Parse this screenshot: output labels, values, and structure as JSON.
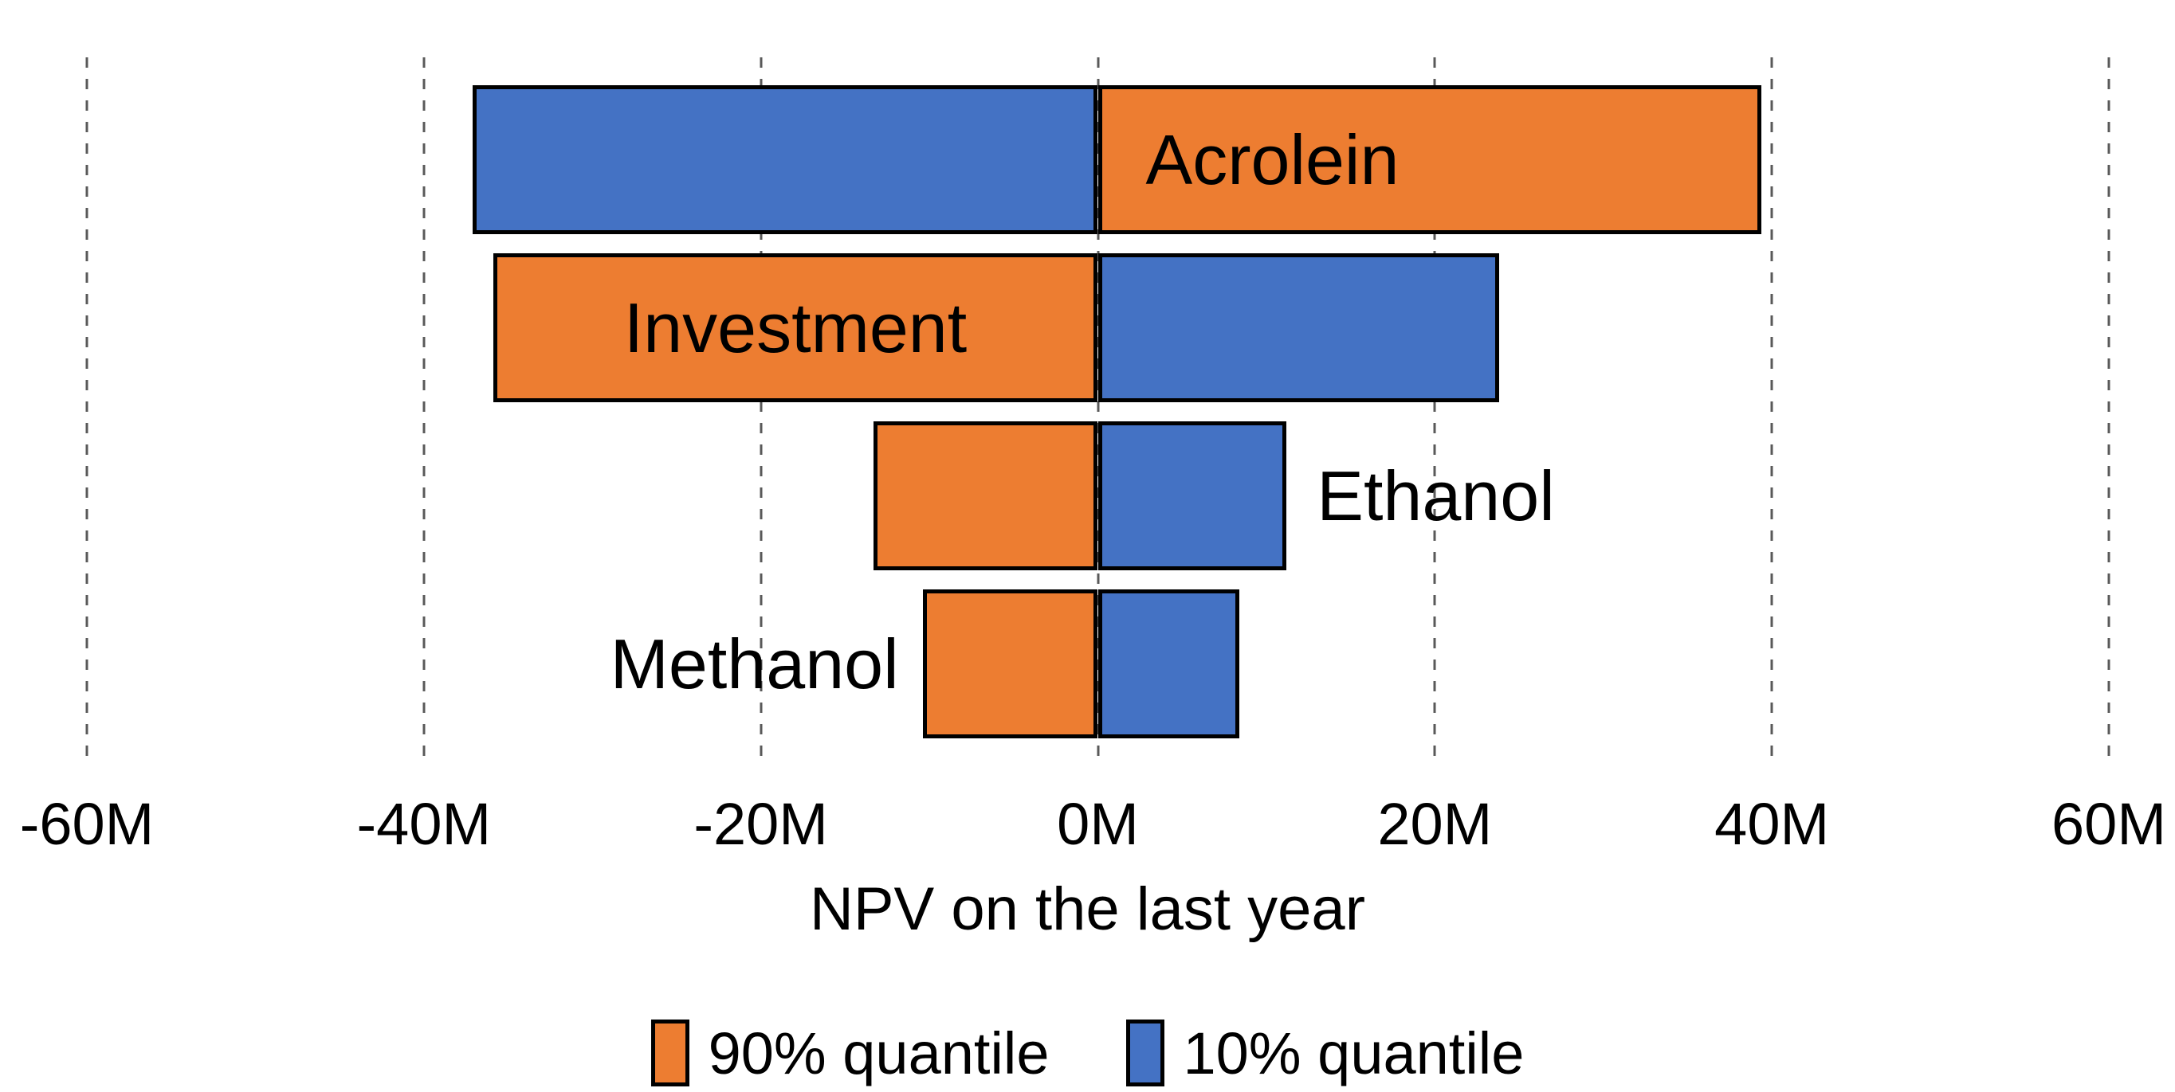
{
  "chart_data": {
    "type": "bar",
    "subtype": "horizontal-diverging-tornado",
    "title": "",
    "xlabel": "NPV on the last year",
    "xlim": [
      -60,
      60
    ],
    "xticks": {
      "values": [
        -60,
        -40,
        -20,
        0,
        20,
        40,
        60
      ],
      "labels": [
        "-60M",
        "-40M",
        "-20M",
        "0M",
        "20M",
        "40M",
        "60M"
      ]
    },
    "grid": {
      "vertical_dashed": true,
      "color": "#595959"
    },
    "background_color": "#FFFFFF",
    "bar_border_color": "#000000",
    "text_color": "#000000",
    "categories": [
      "Acrolein",
      "Investment",
      "Ethanol",
      "Methanol"
    ],
    "category_label_placement": [
      "inside-positive",
      "inside-negative",
      "outside-positive",
      "outside-negative"
    ],
    "series": [
      {
        "name": "90% quantile",
        "color": "#ED7D31",
        "values": [
          39.4,
          -35.9,
          -13.3,
          -10.4
        ]
      },
      {
        "name": "10% quantile",
        "color": "#4472C4",
        "values": [
          -37.1,
          23.8,
          11.2,
          8.4
        ]
      }
    ],
    "legend": {
      "position": "bottom-center",
      "items": [
        {
          "label": "90% quantile",
          "color": "#ED7D31"
        },
        {
          "label": "10% quantile",
          "color": "#4472C4"
        }
      ]
    }
  }
}
